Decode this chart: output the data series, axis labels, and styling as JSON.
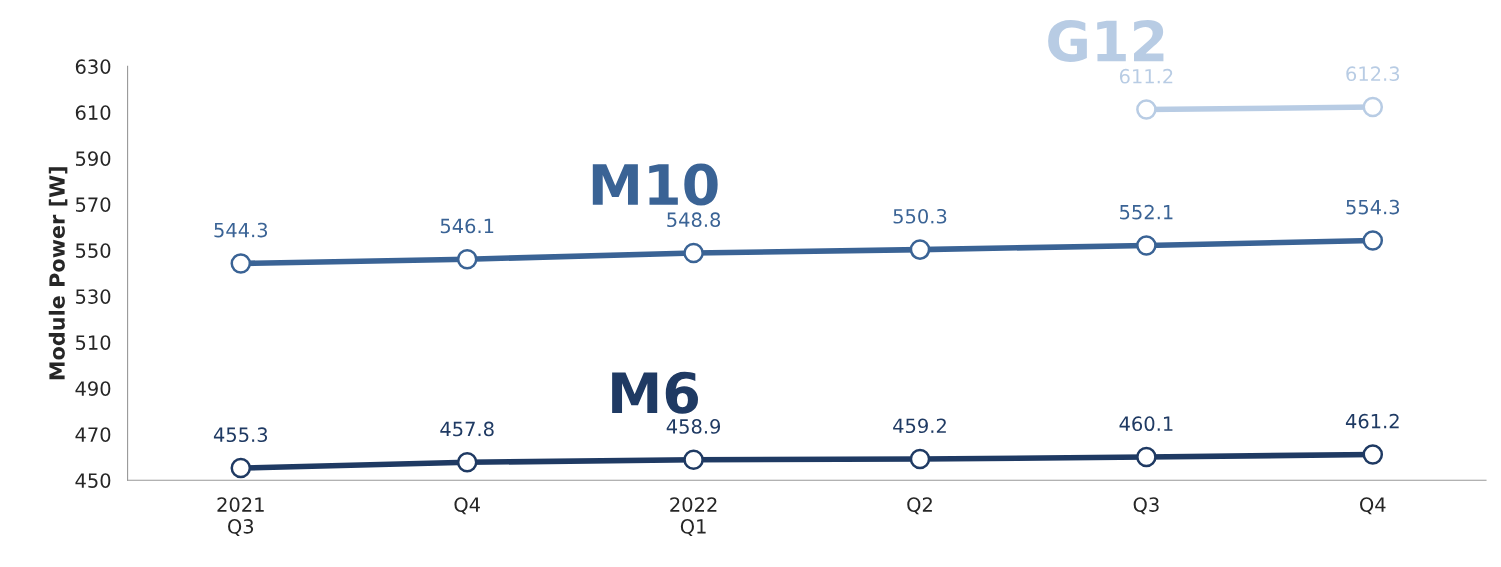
{
  "chart_data": {
    "type": "line",
    "ylabel": "Module Power [W]",
    "categories": [
      "2021\nQ3",
      "Q4",
      "2022\nQ1",
      "Q2",
      "Q3",
      "Q4"
    ],
    "series": [
      {
        "name": "M6",
        "color": "#1f3a63",
        "values": [
          455.3,
          457.8,
          458.9,
          459.2,
          460.1,
          461.2
        ]
      },
      {
        "name": "M10",
        "color": "#3a6395",
        "values": [
          544.3,
          546.1,
          548.8,
          550.3,
          552.1,
          554.3
        ]
      },
      {
        "name": "G12",
        "color": "#b8cce4",
        "values": [
          null,
          null,
          null,
          null,
          611.2,
          612.3
        ]
      }
    ],
    "ylim": [
      450,
      630
    ],
    "yticks": [
      450,
      470,
      490,
      510,
      530,
      550,
      570,
      590,
      610,
      630
    ],
    "data_labels": true,
    "marker": "circle",
    "line_style": "solid"
  }
}
